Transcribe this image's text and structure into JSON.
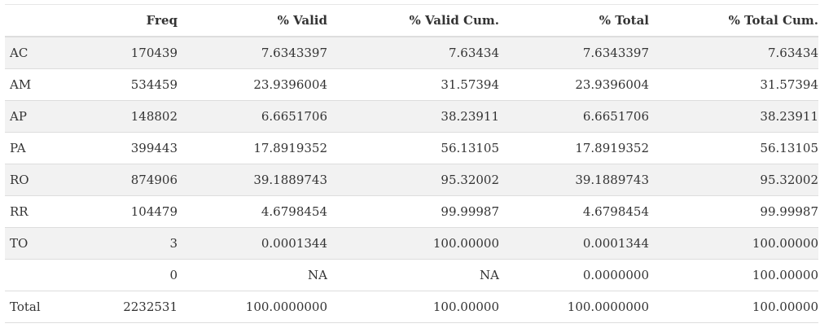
{
  "table": {
    "headers": [
      "",
      "Freq",
      "% Valid",
      "% Valid Cum.",
      "% Total",
      "% Total Cum."
    ],
    "rows": [
      [
        "AC",
        "170439",
        "7.6343397",
        "7.63434",
        "7.6343397",
        "7.63434"
      ],
      [
        "AM",
        "534459",
        "23.9396004",
        "31.57394",
        "23.9396004",
        "31.57394"
      ],
      [
        "AP",
        "148802",
        "6.6651706",
        "38.23911",
        "6.6651706",
        "38.23911"
      ],
      [
        "PA",
        "399443",
        "17.8919352",
        "56.13105",
        "17.8919352",
        "56.13105"
      ],
      [
        "RO",
        "874906",
        "39.1889743",
        "95.32002",
        "39.1889743",
        "95.32002"
      ],
      [
        "RR",
        "104479",
        "4.6798454",
        "99.99987",
        "4.6798454",
        "99.99987"
      ],
      [
        "TO",
        "3",
        "0.0001344",
        "100.00000",
        "0.0001344",
        "100.00000"
      ],
      [
        "",
        "0",
        "NA",
        "NA",
        "0.0000000",
        "100.00000"
      ],
      [
        "Total",
        "2232531",
        "100.0000000",
        "100.00000",
        "100.0000000",
        "100.00000"
      ]
    ],
    "striped_rows": [
      0,
      2,
      4,
      6
    ]
  }
}
